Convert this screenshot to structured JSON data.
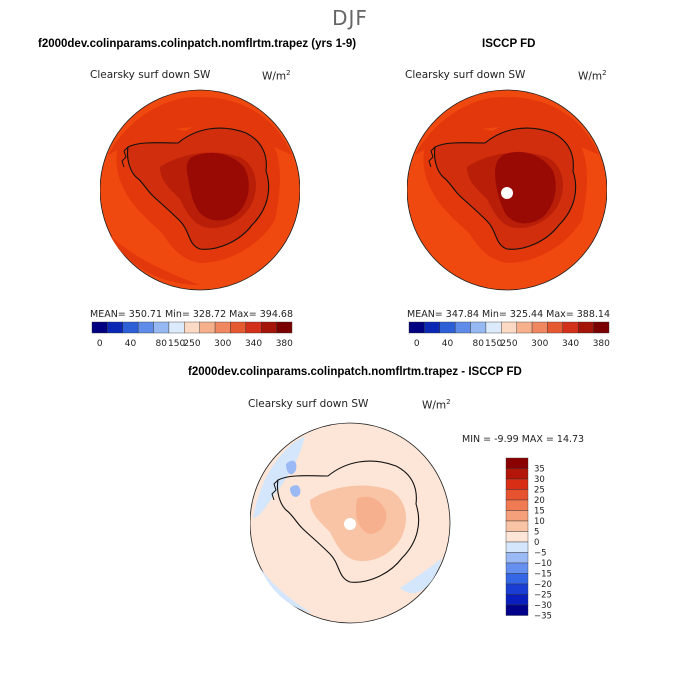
{
  "figure": {
    "season": "DJF",
    "colors": {
      "warm_scale": [
        "#000080",
        "#0a28b4",
        "#2d5fd7",
        "#5f8ce9",
        "#96b9f3",
        "#dceafc",
        "#fbd9c4",
        "#f6b18c",
        "#ef8760",
        "#e65a32",
        "#d2301a",
        "#a41408",
        "#7a0000"
      ],
      "diff_scale": [
        "#00008b",
        "#0a1ebe",
        "#1a3ed4",
        "#3566e6",
        "#6690ef",
        "#9bbaf5",
        "#d4e6fb",
        "#fde6d7",
        "#f9c4a6",
        "#f5a07a",
        "#f07a52",
        "#e8532f",
        "#d82e16",
        "#b31608",
        "#8a0000"
      ],
      "ocean": "#f0490f",
      "coast_zone": "#e3380c",
      "ice_edge": "#d02e0c",
      "plateau": "#9a0a05"
    }
  },
  "chart_data": [
    {
      "type": "heatmap",
      "projection": "south polar stereographic",
      "title": "f2000dev.colinparams.colinpatch.nomflrtm.trapez (yrs 1-9)",
      "variable": "Clearsky surf down SW",
      "units_base": "W/m",
      "units_exp": "2",
      "stats": "MEAN= 350.71   Min= 328.72   Max= 394.68",
      "mean": 350.71,
      "min": 328.72,
      "max": 394.68,
      "colorbar_ticks": [
        "0",
        "40",
        "80",
        "150",
        "250",
        "300",
        "340",
        "380"
      ],
      "contour_levels": [
        0,
        20,
        40,
        60,
        80,
        100,
        150,
        200,
        250,
        275,
        300,
        320,
        340,
        360,
        380
      ]
    },
    {
      "type": "heatmap",
      "projection": "south polar stereographic",
      "title": "ISCCP FD",
      "variable": "Clearsky surf down SW",
      "units_base": "W/m",
      "units_exp": "2",
      "stats": "MEAN= 347.84   Min= 325.44   Max= 388.14",
      "mean": 347.84,
      "min": 325.44,
      "max": 388.14,
      "colorbar_ticks": [
        "0",
        "40",
        "80",
        "150",
        "250",
        "300",
        "340",
        "380"
      ],
      "contour_levels": [
        0,
        20,
        40,
        60,
        80,
        100,
        150,
        200,
        250,
        275,
        300,
        320,
        340,
        360,
        380
      ]
    },
    {
      "type": "heatmap",
      "projection": "south polar stereographic",
      "title": "f2000dev.colinparams.colinpatch.nomflrtm.trapez - ISCCP FD",
      "variable": "Clearsky surf down SW",
      "units_base": "W/m",
      "units_exp": "2",
      "stats": "MIN =   -9.99  MAX =  14.73",
      "min": -9.99,
      "max": 14.73,
      "colorbar_ticks": [
        "35",
        "30",
        "25",
        "20",
        "15",
        "10",
        "5",
        "0",
        "-5",
        "-10",
        "-15",
        "-20",
        "-25",
        "-30",
        "-35"
      ]
    }
  ]
}
